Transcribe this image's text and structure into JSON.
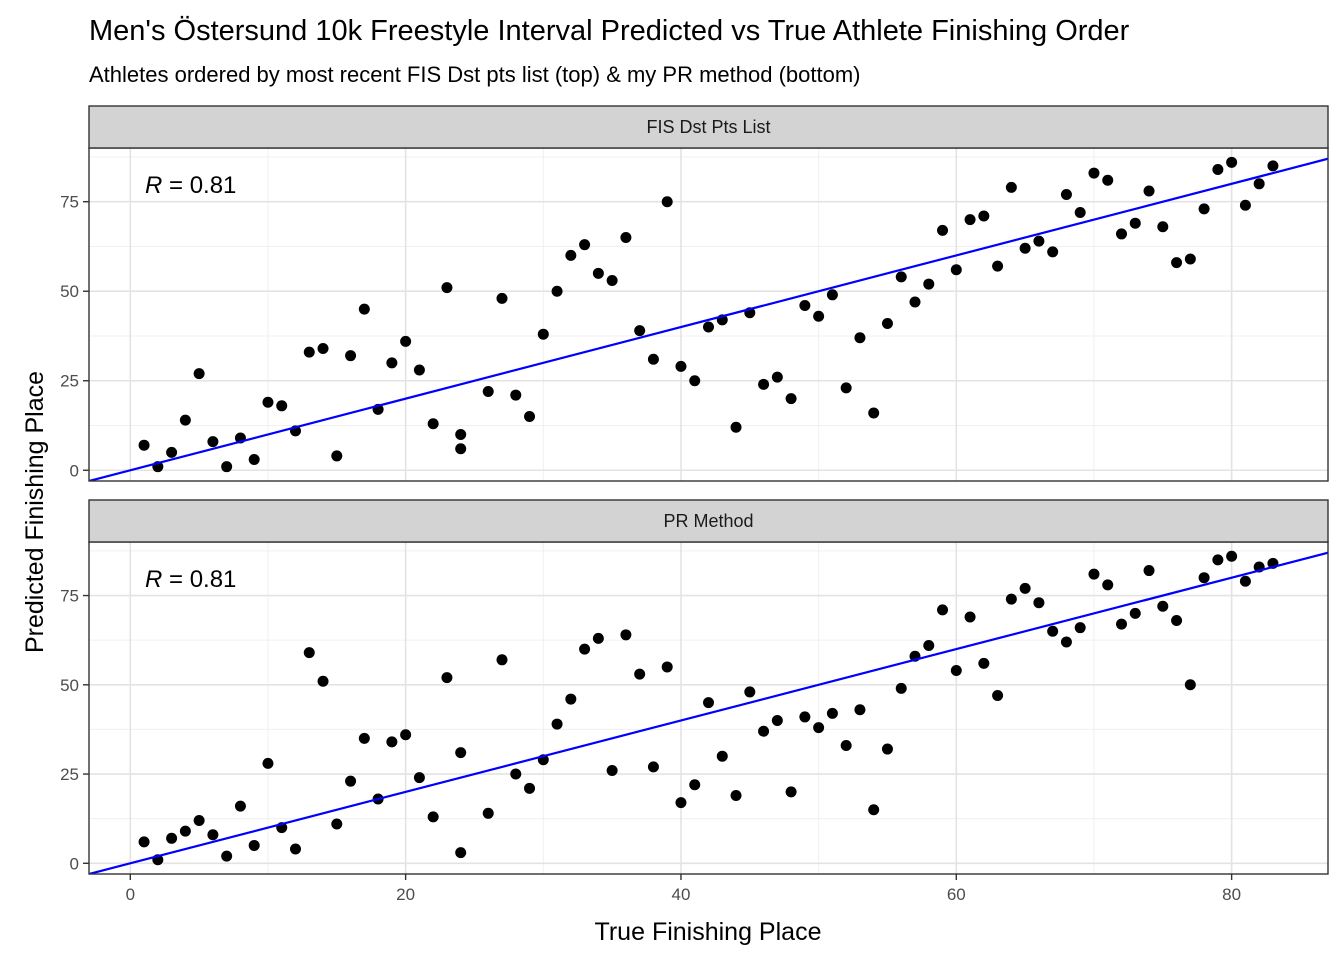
{
  "chart_data": {
    "type": "scatter",
    "title": "Men's Östersund 10k Freestyle Interval Predicted vs True Athlete Finishing Order",
    "subtitle": "Athletes ordered by most recent FIS Dst pts list (top) & my PR method (bottom)",
    "xlabel": "True Finishing Place",
    "ylabel": "Predicted Finishing Place",
    "xlim": [
      -3,
      87
    ],
    "ylim": [
      -3,
      90
    ],
    "x_ticks": [
      0,
      20,
      40,
      60,
      80
    ],
    "y_ticks": [
      0,
      25,
      50,
      75
    ],
    "grid": true,
    "point_color": "#000000",
    "line_color": "#0000ff",
    "strip_fill": "#d3d3d3",
    "reference_line": {
      "slope": 1,
      "intercept": 0
    },
    "panels": [
      {
        "strip_label": "FIS Dst Pts List",
        "correlation": {
          "symbol": "R",
          "value_text": " = 0.81"
        },
        "points": [
          [
            1,
            7
          ],
          [
            2,
            1
          ],
          [
            3,
            5
          ],
          [
            4,
            14
          ],
          [
            5,
            27
          ],
          [
            6,
            8
          ],
          [
            7,
            1
          ],
          [
            8,
            9
          ],
          [
            9,
            3
          ],
          [
            10,
            19
          ],
          [
            11,
            18
          ],
          [
            12,
            11
          ],
          [
            13,
            33
          ],
          [
            14,
            34
          ],
          [
            15,
            4
          ],
          [
            16,
            32
          ],
          [
            17,
            45
          ],
          [
            18,
            17
          ],
          [
            19,
            30
          ],
          [
            20,
            36
          ],
          [
            21,
            28
          ],
          [
            22,
            13
          ],
          [
            23,
            51
          ],
          [
            24,
            10
          ],
          [
            24,
            6
          ],
          [
            26,
            22
          ],
          [
            27,
            48
          ],
          [
            28,
            21
          ],
          [
            29,
            15
          ],
          [
            30,
            38
          ],
          [
            31,
            50
          ],
          [
            32,
            60
          ],
          [
            33,
            63
          ],
          [
            34,
            55
          ],
          [
            35,
            53
          ],
          [
            36,
            65
          ],
          [
            37,
            39
          ],
          [
            38,
            31
          ],
          [
            39,
            75
          ],
          [
            40,
            29
          ],
          [
            41,
            25
          ],
          [
            42,
            40
          ],
          [
            43,
            42
          ],
          [
            44,
            12
          ],
          [
            45,
            44
          ],
          [
            46,
            24
          ],
          [
            47,
            26
          ],
          [
            48,
            20
          ],
          [
            49,
            46
          ],
          [
            50,
            43
          ],
          [
            51,
            49
          ],
          [
            52,
            23
          ],
          [
            53,
            37
          ],
          [
            54,
            16
          ],
          [
            55,
            41
          ],
          [
            56,
            54
          ],
          [
            57,
            47
          ],
          [
            58,
            52
          ],
          [
            59,
            67
          ],
          [
            60,
            56
          ],
          [
            61,
            70
          ],
          [
            62,
            71
          ],
          [
            63,
            57
          ],
          [
            64,
            79
          ],
          [
            65,
            62
          ],
          [
            66,
            64
          ],
          [
            67,
            61
          ],
          [
            68,
            77
          ],
          [
            69,
            72
          ],
          [
            70,
            83
          ],
          [
            71,
            81
          ],
          [
            72,
            66
          ],
          [
            73,
            69
          ],
          [
            74,
            78
          ],
          [
            75,
            68
          ],
          [
            76,
            58
          ],
          [
            77,
            59
          ],
          [
            78,
            73
          ],
          [
            79,
            84
          ],
          [
            80,
            86
          ],
          [
            81,
            74
          ],
          [
            82,
            80
          ],
          [
            83,
            85
          ]
        ]
      },
      {
        "strip_label": "PR Method",
        "correlation": {
          "symbol": "R",
          "value_text": " = 0.81"
        },
        "points": [
          [
            1,
            6
          ],
          [
            2,
            1
          ],
          [
            3,
            7
          ],
          [
            4,
            9
          ],
          [
            5,
            12
          ],
          [
            6,
            8
          ],
          [
            7,
            2
          ],
          [
            8,
            16
          ],
          [
            9,
            5
          ],
          [
            10,
            28
          ],
          [
            11,
            10
          ],
          [
            12,
            4
          ],
          [
            13,
            59
          ],
          [
            14,
            51
          ],
          [
            15,
            11
          ],
          [
            16,
            23
          ],
          [
            17,
            35
          ],
          [
            18,
            18
          ],
          [
            19,
            34
          ],
          [
            20,
            36
          ],
          [
            21,
            24
          ],
          [
            22,
            13
          ],
          [
            23,
            52
          ],
          [
            24,
            31
          ],
          [
            24,
            3
          ],
          [
            26,
            14
          ],
          [
            27,
            57
          ],
          [
            28,
            25
          ],
          [
            29,
            21
          ],
          [
            30,
            29
          ],
          [
            31,
            39
          ],
          [
            32,
            46
          ],
          [
            33,
            60
          ],
          [
            34,
            63
          ],
          [
            35,
            26
          ],
          [
            36,
            64
          ],
          [
            37,
            53
          ],
          [
            38,
            27
          ],
          [
            39,
            55
          ],
          [
            40,
            17
          ],
          [
            41,
            22
          ],
          [
            42,
            45
          ],
          [
            43,
            30
          ],
          [
            44,
            19
          ],
          [
            45,
            48
          ],
          [
            46,
            37
          ],
          [
            47,
            40
          ],
          [
            48,
            20
          ],
          [
            49,
            41
          ],
          [
            50,
            38
          ],
          [
            51,
            42
          ],
          [
            52,
            33
          ],
          [
            53,
            43
          ],
          [
            54,
            15
          ],
          [
            55,
            32
          ],
          [
            56,
            49
          ],
          [
            57,
            58
          ],
          [
            58,
            61
          ],
          [
            59,
            71
          ],
          [
            60,
            54
          ],
          [
            61,
            69
          ],
          [
            62,
            56
          ],
          [
            63,
            47
          ],
          [
            64,
            74
          ],
          [
            65,
            77
          ],
          [
            66,
            73
          ],
          [
            67,
            65
          ],
          [
            68,
            62
          ],
          [
            69,
            66
          ],
          [
            70,
            81
          ],
          [
            71,
            78
          ],
          [
            72,
            67
          ],
          [
            73,
            70
          ],
          [
            74,
            82
          ],
          [
            75,
            72
          ],
          [
            76,
            68
          ],
          [
            77,
            50
          ],
          [
            78,
            80
          ],
          [
            79,
            85
          ],
          [
            80,
            86
          ],
          [
            81,
            79
          ],
          [
            82,
            83
          ],
          [
            83,
            84
          ]
        ]
      }
    ]
  }
}
